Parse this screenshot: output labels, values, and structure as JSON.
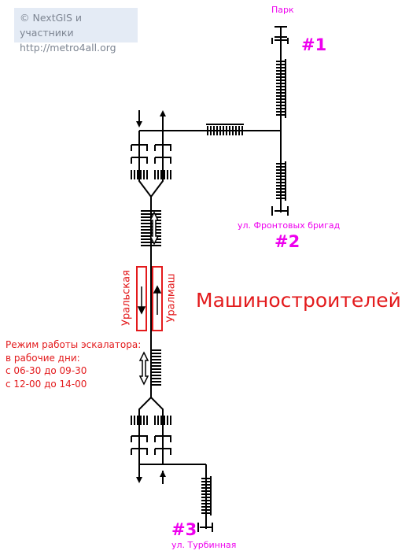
{
  "credits": {
    "line1": "© NextGIS и участники",
    "line2": "http://metro4all.org"
  },
  "station": {
    "name": "Машиностроителей",
    "platform_left": "Уральская",
    "platform_right": "Уралмаш"
  },
  "schedule": {
    "line1": "Режим работы эскалатора:",
    "line2": "в рабочие дни:",
    "line3": "с 06-30 до 09-30",
    "line4": "с 12-00 до 14-00"
  },
  "exits": [
    {
      "number": "#1",
      "street": "Парк"
    },
    {
      "number": "#2",
      "street": "ул. Фронтовых бригад"
    },
    {
      "number": "#3",
      "street": "ул. Турбинная"
    }
  ],
  "colors": {
    "accent_magenta": "#ee00ee",
    "accent_red": "#e31a1c",
    "line": "#000000",
    "credit_bg": "#e4ebf5"
  }
}
